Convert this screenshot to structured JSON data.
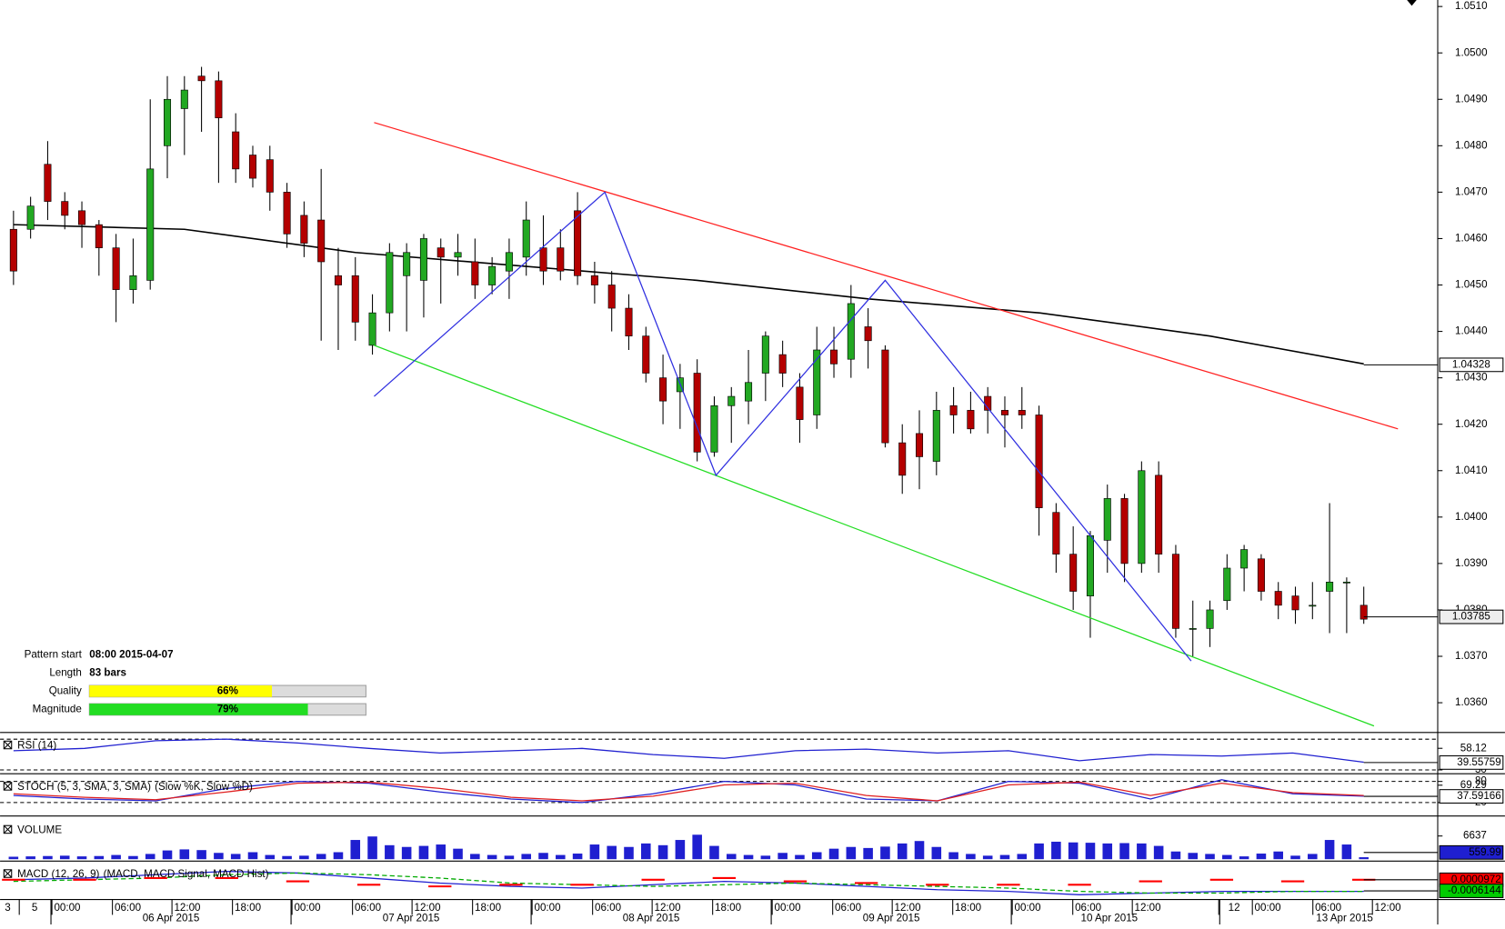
{
  "chart_data": [
    {
      "type": "candlestick",
      "open": [
        1.0462,
        1.0462,
        1.0476,
        1.0468,
        1.0466,
        1.0463,
        1.0458,
        1.0449,
        1.0451,
        1.048,
        1.0488,
        1.0495,
        1.0494,
        1.0483,
        1.0478,
        1.0477,
        1.047,
        1.0465,
        1.0464,
        1.0452,
        1.0452,
        1.0437,
        1.0444,
        1.0452,
        1.0451,
        1.0458,
        1.0456,
        1.0455,
        1.045,
        1.0453,
        1.0456,
        1.0458,
        1.0458,
        1.0466,
        1.0452,
        1.045,
        1.0445,
        1.0439,
        1.043,
        1.0427,
        1.0431,
        1.0414,
        1.0424,
        1.0425,
        1.0431,
        1.0435,
        1.0428,
        1.0422,
        1.0436,
        1.0434,
        1.0441,
        1.0436,
        1.0416,
        1.0418,
        1.0412,
        1.0424,
        1.0423,
        1.0426,
        1.0423,
        1.0423,
        1.0422,
        1.0401,
        1.0392,
        1.0383,
        1.0395,
        1.0404,
        1.039,
        1.0409,
        1.0392,
        1.0376,
        1.0376,
        1.0382,
        1.0389,
        1.0391,
        1.0384,
        1.0383,
        1.0381,
        1.0384,
        1.0386,
        1.0381
      ],
      "high": [
        1.0466,
        1.0469,
        1.0481,
        1.047,
        1.0468,
        1.0464,
        1.0461,
        1.046,
        1.049,
        1.0495,
        1.0495,
        1.0497,
        1.0496,
        1.0487,
        1.048,
        1.048,
        1.0472,
        1.0468,
        1.0475,
        1.0458,
        1.0456,
        1.0448,
        1.0459,
        1.0459,
        1.0461,
        1.046,
        1.0461,
        1.046,
        1.0456,
        1.046,
        1.0468,
        1.0465,
        1.0462,
        1.047,
        1.0455,
        1.0453,
        1.0448,
        1.0441,
        1.0435,
        1.0433,
        1.0434,
        1.0426,
        1.0428,
        1.0436,
        1.044,
        1.0438,
        1.0431,
        1.0441,
        1.0441,
        1.045,
        1.0445,
        1.0437,
        1.042,
        1.0423,
        1.0427,
        1.0428,
        1.0427,
        1.0428,
        1.0426,
        1.0428,
        1.0424,
        1.0403,
        1.0398,
        1.0397,
        1.0407,
        1.0405,
        1.0412,
        1.0412,
        1.0394,
        1.0382,
        1.0382,
        1.0392,
        1.0394,
        1.0392,
        1.0386,
        1.0385,
        1.0386,
        1.0403,
        1.0387,
        1.0385
      ],
      "low": [
        1.045,
        1.046,
        1.0464,
        1.0462,
        1.0458,
        1.0452,
        1.0442,
        1.0446,
        1.0449,
        1.0473,
        1.0478,
        1.0483,
        1.0472,
        1.0472,
        1.0471,
        1.0466,
        1.0458,
        1.0456,
        1.0438,
        1.0436,
        1.0438,
        1.0435,
        1.044,
        1.044,
        1.0443,
        1.0446,
        1.0452,
        1.0447,
        1.0448,
        1.0447,
        1.0452,
        1.045,
        1.0451,
        1.045,
        1.0446,
        1.044,
        1.0436,
        1.0429,
        1.042,
        1.0419,
        1.0412,
        1.0413,
        1.0416,
        1.042,
        1.0425,
        1.0428,
        1.0416,
        1.0419,
        1.043,
        1.043,
        1.0432,
        1.0415,
        1.0405,
        1.0406,
        1.0409,
        1.0418,
        1.0418,
        1.0418,
        1.0415,
        1.0419,
        1.0396,
        1.0388,
        1.038,
        1.0374,
        1.0388,
        1.0386,
        1.0388,
        1.0388,
        1.0374,
        1.037,
        1.0372,
        1.038,
        1.0384,
        1.0382,
        1.0378,
        1.0377,
        1.0378,
        1.0375,
        1.0375,
        1.0377
      ],
      "close": [
        1.0453,
        1.0467,
        1.0468,
        1.0465,
        1.0463,
        1.0458,
        1.0449,
        1.0452,
        1.0475,
        1.049,
        1.0492,
        1.0494,
        1.0486,
        1.0475,
        1.0473,
        1.047,
        1.0461,
        1.0459,
        1.0455,
        1.045,
        1.0442,
        1.0444,
        1.0457,
        1.0457,
        1.046,
        1.0456,
        1.0457,
        1.045,
        1.0454,
        1.0457,
        1.0464,
        1.0453,
        1.0453,
        1.0452,
        1.045,
        1.0445,
        1.0439,
        1.0431,
        1.0425,
        1.043,
        1.0414,
        1.0424,
        1.0426,
        1.0429,
        1.0439,
        1.0431,
        1.0421,
        1.0436,
        1.0433,
        1.0446,
        1.0438,
        1.0416,
        1.0409,
        1.0413,
        1.0423,
        1.0422,
        1.0419,
        1.0423,
        1.0422,
        1.0422,
        1.0402,
        1.0392,
        1.0384,
        1.0396,
        1.0404,
        1.039,
        1.041,
        1.0392,
        1.0376,
        1.0376,
        1.038,
        1.0389,
        1.0393,
        1.0384,
        1.0381,
        1.038,
        1.0381,
        1.0386,
        1.0386,
        1.0378
      ],
      "up_color": "#22a822",
      "down_color": "#b40000",
      "ylim": [
        1.03538,
        1.05114
      ],
      "yticks": [
        {
          "value": 1.036,
          "label": "1.0360"
        },
        {
          "value": 1.037,
          "label": "1.0370"
        },
        {
          "value": 1.038,
          "label": "1.0380"
        },
        {
          "value": 1.039,
          "label": "1.0390"
        },
        {
          "value": 1.04,
          "label": "1.0400"
        },
        {
          "value": 1.041,
          "label": "1.0410"
        },
        {
          "value": 1.042,
          "label": "1.0420"
        },
        {
          "value": 1.043,
          "label": "1.0430"
        },
        {
          "value": 1.044,
          "label": "1.0440"
        },
        {
          "value": 1.045,
          "label": "1.0450"
        },
        {
          "value": 1.046,
          "label": "1.0460"
        },
        {
          "value": 1.047,
          "label": "1.0470"
        },
        {
          "value": 1.048,
          "label": "1.0480"
        },
        {
          "value": 1.049,
          "label": "1.0490"
        },
        {
          "value": 1.05,
          "label": "1.0500"
        },
        {
          "value": 1.051,
          "label": "1.0510"
        }
      ],
      "moving_average": {
        "color": "#000000",
        "x": [
          0,
          10,
          20,
          30,
          40,
          50,
          60,
          70,
          79
        ],
        "values": [
          1.0463,
          1.0462,
          1.0457,
          1.0454,
          1.0451,
          1.0447,
          1.0444,
          1.0439,
          1.0433
        ]
      },
      "trend_lines": [
        {
          "color": "#ff2020",
          "x": [
            21.1,
            81
          ],
          "values": [
            1.0485,
            1.0419
          ]
        },
        {
          "color": "#22dd22",
          "x": [
            21.1,
            79.6
          ],
          "values": [
            1.0437,
            1.0355
          ]
        },
        {
          "color": "#3030e0",
          "x": [
            21.1,
            34.6,
            41.1,
            51,
            68.9
          ],
          "values": [
            1.0426,
            1.047,
            1.0409,
            1.0451,
            1.0369
          ]
        }
      ],
      "current_labels": [
        {
          "value": 1.04328,
          "color": "#ffffff"
        },
        {
          "value": 1.03785,
          "color": "#eeeeee"
        }
      ],
      "pattern": {
        "xlim": [
          0,
          100
        ],
        "rows": [
          {
            "label": "Pattern start",
            "value": "08:00 2015-04-07"
          },
          {
            "label": "Length",
            "value": "83 bars"
          },
          {
            "label": "Quality",
            "value": 66,
            "value_label": "66%",
            "color": "#ffff00"
          },
          {
            "label": "Magnitude",
            "value": 79,
            "value_label": "79%",
            "color": "#22dd22"
          }
        ]
      },
      "time_labels": [
        "3",
        "5",
        "00:00",
        "06:00",
        "12:00",
        "18:00",
        "00:00",
        "06:00",
        "12:00",
        "18:00",
        "00:00",
        "06:00",
        "12:00",
        "18:00",
        "00:00",
        "06:00",
        "12:00",
        "18:00",
        "00:00",
        "06:00",
        "12:00",
        "12",
        "00:00",
        "06:00",
        "12:00"
      ],
      "date_labels": [
        "06 Apr 2015",
        "07 Apr 2015",
        "08 Apr 2015",
        "09 Apr 2015",
        "10 Apr 2015",
        "13 Apr 2015"
      ]
    },
    {
      "type": "line",
      "title": "RSI (14)",
      "ylim": [
        26.25,
        76.25
      ],
      "yticks": [
        58.12,
        30
      ],
      "levels": [
        70,
        30
      ],
      "series": [
        {
          "color": "#2020d0",
          "values": [
            55,
            58,
            68,
            70,
            65,
            58,
            52,
            55,
            58,
            50,
            45,
            55,
            57,
            52,
            55,
            42,
            50,
            48,
            52,
            40
          ]
        }
      ],
      "current_labels": [
        {
          "value": 39.55759,
          "color": "#ffffff"
        }
      ]
    },
    {
      "type": "line",
      "title": "STOCH (5, 3, SMA, 3, SMA)",
      "subtitle": "(Slow %K, Slow %D)",
      "ylim": [
        -12.7,
        96.4
      ],
      "yticks": [
        80,
        69.29,
        20
      ],
      "levels": [
        80,
        20
      ],
      "series": [
        {
          "color": "#2020d0",
          "values": [
            40,
            30,
            25,
            60,
            80,
            75,
            50,
            30,
            20,
            45,
            80,
            70,
            30,
            25,
            80,
            75,
            30,
            85,
            45,
            38
          ]
        },
        {
          "color": "#e02020",
          "values": [
            45,
            35,
            28,
            50,
            75,
            78,
            60,
            35,
            25,
            38,
            70,
            75,
            40,
            25,
            70,
            78,
            40,
            75,
            48,
            40
          ]
        }
      ],
      "current_labels": [
        {
          "value": 37.59166,
          "color": "#ffffff"
        }
      ]
    },
    {
      "type": "bar",
      "title": "VOLUME",
      "ylim": [
        0,
        11540
      ],
      "yticks": [
        6637
      ],
      "series": [
        {
          "color": "#1f1fd0",
          "values": [
            700,
            800,
            900,
            1000,
            800,
            900,
            1200,
            900,
            1500,
            2500,
            2800,
            2600,
            1800,
            1500,
            2000,
            1200,
            900,
            1000,
            1500,
            2000,
            5500,
            6500,
            4000,
            3500,
            3800,
            4200,
            3000,
            1500,
            1200,
            1000,
            1500,
            1800,
            1200,
            1600,
            4200,
            3800,
            3500,
            4500,
            4000,
            5500,
            7000,
            3800,
            1500,
            1200,
            1000,
            1800,
            1200,
            2000,
            3000,
            3500,
            3200,
            3600,
            4500,
            5200,
            3500,
            2000,
            1500,
            1000,
            1200,
            1500,
            4500,
            5000,
            4800,
            4700,
            4500,
            4600,
            4500,
            3800,
            2200,
            1800,
            1500,
            1200,
            800,
            1600,
            2200,
            1000,
            1500,
            5500,
            4200,
            560
          ]
        }
      ],
      "current_labels": [
        {
          "value": 559.99,
          "color": "#1f1fd0"
        }
      ]
    },
    {
      "type": "line",
      "title": "MACD (12, 26, 9)",
      "subtitle": "(MACD, MACD Signal, MACD Hist)",
      "ylim": [
        -0.00097,
        0.0011
      ],
      "yticks": [],
      "series": [
        {
          "color": "#2020d0",
          "values": [
            0.0001,
            0.0002,
            0.0004,
            0.0006,
            0.0005,
            0.0002,
            -0.0001,
            -0.0003,
            -0.0004,
            -0.0002,
            0,
            -0.0001,
            -0.0003,
            -0.0005,
            -0.0006,
            -0.0008,
            -0.0007,
            -0.0006,
            -0.0006,
            -0.0006
          ]
        },
        {
          "color": "#00aa00",
          "dashed": true,
          "values": [
            0,
            0.0001,
            0.0002,
            0.0004,
            0.0005,
            0.0004,
            0.0002,
            -0.0001,
            -0.0002,
            -0.0003,
            -0.0002,
            -0.0001,
            -0.0002,
            -0.0003,
            -0.0004,
            -0.0006,
            -0.0007,
            -0.0007,
            -0.0006,
            -0.0006
          ]
        },
        {
          "color": "#ff0000",
          "style": "histogram",
          "values": [
            0.0001,
            0.0001,
            0.0002,
            0.0002,
            0,
            -0.0002,
            -0.0003,
            -0.0002,
            -0.0002,
            0.0001,
            0.0002,
            0,
            -0.0001,
            -0.0002,
            -0.0002,
            -0.0002,
            0,
            0.0001,
            0,
            0.0001
          ]
        }
      ],
      "current_labels": [
        {
          "value": 9.72e-05,
          "color": "#ff0000"
        },
        {
          "value": -0.0006144,
          "color": "#00cc00"
        }
      ]
    }
  ]
}
